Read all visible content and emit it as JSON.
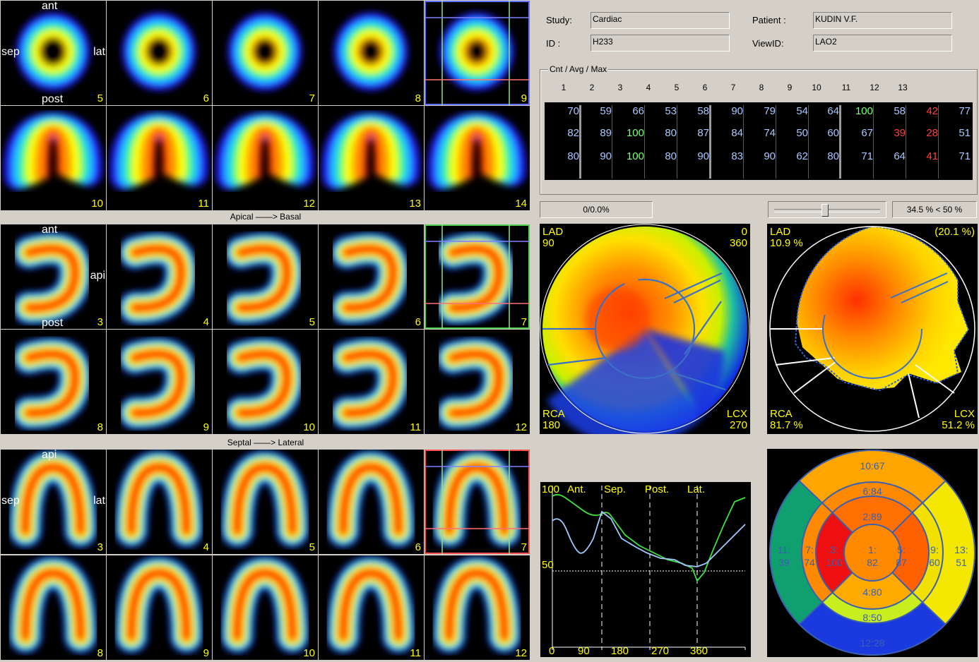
{
  "row_captions": {
    "apical_basal": "Apical ——> Basal",
    "septal_lateral": "Septal ——> Lateral"
  },
  "orientation_labels": {
    "short_axis": {
      "top": "ant",
      "left": "sep",
      "right": "lat",
      "bottom": "post"
    },
    "vertical_long_axis": {
      "top": "ant",
      "right": "api",
      "bottom": "post"
    },
    "horizontal_long_axis": {
      "top": "api",
      "left": "sep",
      "right": "lat"
    }
  },
  "slices": {
    "short_axis": [
      "5",
      "6",
      "7",
      "8",
      "9",
      "10",
      "11",
      "12",
      "13",
      "14"
    ],
    "vertical_long_axis": [
      "3",
      "4",
      "5",
      "6",
      "7",
      "8",
      "9",
      "10",
      "11",
      "12"
    ],
    "horizontal_long_axis": [
      "3",
      "4",
      "5",
      "6",
      "7",
      "8",
      "9",
      "10",
      "11",
      "12"
    ]
  },
  "info": {
    "study_label": "Study:",
    "study_value": "Cardiac",
    "id_label": "ID :",
    "id_value": "H233",
    "patient_label": "Patient :",
    "patient_value": "KUDIN V.F.",
    "viewid_label": "ViewID:",
    "viewid_value": "LAO2"
  },
  "table": {
    "title": "Cnt / Avg / Max",
    "headers": [
      "1",
      "2",
      "3",
      "4",
      "5",
      "6",
      "7",
      "8",
      "9",
      "10",
      "11",
      "12",
      "13"
    ],
    "rows": [
      [
        "70",
        "59",
        "66",
        "53",
        "58",
        "90",
        "79",
        "54",
        "64",
        "100",
        "58",
        "42",
        "77"
      ],
      [
        "82",
        "89",
        "100",
        "80",
        "87",
        "84",
        "74",
        "50",
        "60",
        "67",
        "39",
        "28",
        "51"
      ],
      [
        "80",
        "90",
        "100",
        "80",
        "90",
        "83",
        "90",
        "62",
        "80",
        "71",
        "64",
        "41",
        "71"
      ]
    ],
    "colors": {
      "normal": "#a9c8ff",
      "max": "#7cff7c",
      "low": "#ff4040"
    }
  },
  "status": {
    "counter": "0/0.0%",
    "threshold": "34.5 % < 50 %"
  },
  "slider": {
    "position_fraction": 0.47
  },
  "polar_map": {
    "tl1": "LAD",
    "tl2": "90",
    "tr1": "0",
    "tr2": "360",
    "bl1": "RCA",
    "bl2": "180",
    "br1": "LCX",
    "br2": "270"
  },
  "defect_map": {
    "tl1": "LAD",
    "tl2": "10.9 %",
    "tr1": "(20.1 %)",
    "bl1": "RCA",
    "bl2": "81.7 %",
    "br1": "LCX",
    "br2": "51.2 %"
  },
  "profile": {
    "ymax_label": "100",
    "mid_label": "50",
    "regions": [
      "Ant.",
      "Sep.",
      "Post.",
      "Lat."
    ],
    "x_ticks": [
      "0",
      "90",
      "180",
      "270",
      "360"
    ]
  },
  "segment_map": {
    "s10": "10:67",
    "s6": "6:84",
    "s2": "2:89",
    "s11a": "11:",
    "s11b": "39",
    "s7a": "7:",
    "s7b": "74",
    "s3a": "3:",
    "s3b": "100",
    "s1a": "1:",
    "s1b": "82",
    "s5a": "5:",
    "s5b": "87",
    "s9a": "9:",
    "s9b": "60",
    "s13a": "13:",
    "s13b": "51",
    "s4": "4:80",
    "s8": "8:50",
    "s12": "12:28"
  },
  "colors": {
    "yellow_text": "#ffff00",
    "segment_text": "#3a5fb0"
  }
}
